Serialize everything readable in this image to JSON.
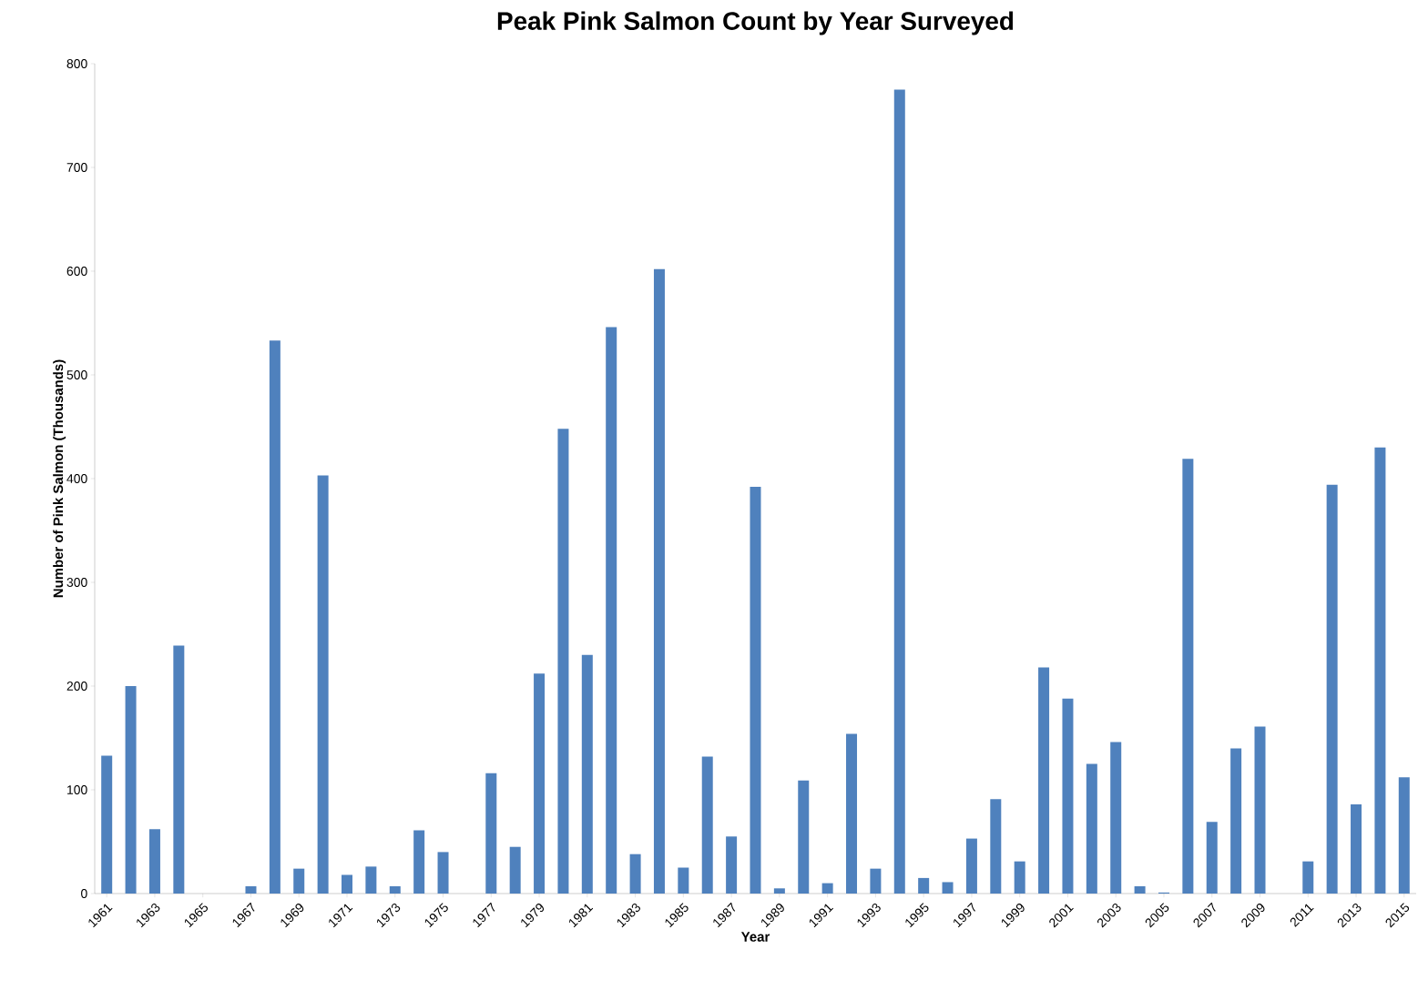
{
  "chart_data": {
    "type": "bar",
    "title": "Peak Pink Salmon Count by Year Surveyed",
    "xlabel": "Year",
    "ylabel": "Number of Pink Salmon (Thousands)",
    "categories": [
      "1961",
      null,
      "1963",
      null,
      "1965",
      null,
      "1967",
      null,
      "1969",
      null,
      "1971",
      null,
      "1973",
      null,
      "1975",
      null,
      "1977",
      null,
      "1979",
      null,
      "1981",
      null,
      "1983",
      null,
      "1985",
      null,
      "1987",
      null,
      "1989",
      null,
      "1991",
      null,
      "1993",
      null,
      "1995",
      null,
      "1997",
      null,
      "1999",
      null,
      "2001",
      null,
      "2003",
      null,
      "2005",
      null,
      "2007",
      null,
      "2009",
      null,
      "2011",
      null,
      "2013",
      null,
      "2015"
    ],
    "values": [
      133,
      200,
      62,
      239,
      0,
      0,
      7,
      533,
      24,
      403,
      18,
      26,
      7,
      61,
      40,
      0,
      116,
      45,
      212,
      448,
      230,
      546,
      38,
      602,
      25,
      132,
      55,
      392,
      5,
      109,
      10,
      154,
      24,
      775,
      15,
      11,
      53,
      91,
      31,
      218,
      188,
      125,
      146,
      7,
      1,
      419,
      69,
      140,
      161,
      0,
      31,
      394,
      86,
      430,
      112
    ],
    "color": "#4f81bd",
    "ylim": [
      0,
      800
    ],
    "yticks": [
      0,
      100,
      200,
      300,
      400,
      500,
      600,
      700,
      800
    ]
  }
}
